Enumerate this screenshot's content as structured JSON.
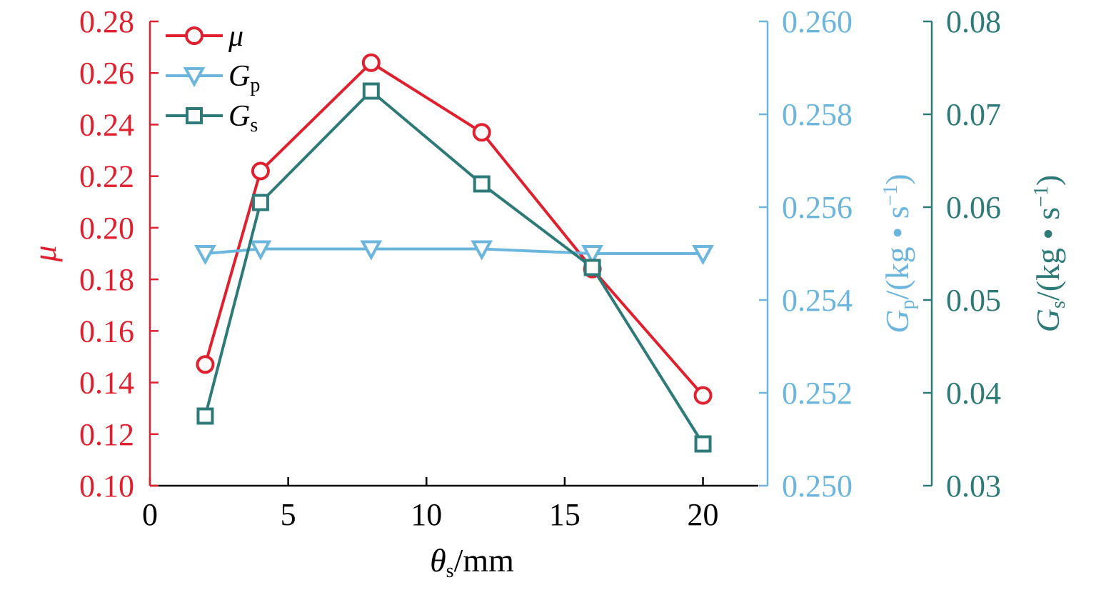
{
  "chart_data": {
    "type": "line",
    "x": [
      2,
      4,
      8,
      12,
      16,
      20
    ],
    "xlim": [
      0,
      22
    ],
    "xticks": [
      0,
      5,
      10,
      15,
      20
    ],
    "xlabel": {
      "symbol": "θ",
      "sub": "s",
      "unit": "/mm"
    },
    "axes": {
      "left": {
        "ylim": [
          0.1,
          0.28
        ],
        "ticks": [
          "0.10",
          "0.12",
          "0.14",
          "0.16",
          "0.18",
          "0.20",
          "0.22",
          "0.24",
          "0.26",
          "0.28"
        ],
        "label": {
          "symbol": "μ"
        },
        "color": "#E0202E"
      },
      "right1": {
        "ylim": [
          0.25,
          0.26
        ],
        "ticks": [
          "0.250",
          "0.252",
          "0.254",
          "0.256",
          "0.258",
          "0.260"
        ],
        "label": {
          "symbol": "G",
          "sub": "p",
          "unit": "/(kg • s",
          "sup": "−1",
          "close": ")"
        },
        "color": "#6CB6DD"
      },
      "right2": {
        "ylim": [
          0.03,
          0.08
        ],
        "ticks": [
          "0.03",
          "0.04",
          "0.05",
          "0.06",
          "0.07",
          "0.08"
        ],
        "label": {
          "symbol": "G",
          "sub": "s",
          "unit": "/(kg • s",
          "sup": "−1",
          "close": ")"
        },
        "color": "#2E7A78"
      }
    },
    "series": [
      {
        "name": "μ",
        "legend_symbol": "μ",
        "legend_sub": "",
        "axis": "left",
        "marker": "circle",
        "color": "#E0202E",
        "values": [
          0.147,
          0.222,
          0.264,
          0.237,
          0.184,
          0.135
        ]
      },
      {
        "name": "Gp",
        "legend_symbol": "G",
        "legend_sub": "p",
        "axis": "right1",
        "marker": "triangle",
        "color": "#6CB6DD",
        "values": [
          0.255,
          0.2551,
          0.2551,
          0.2551,
          0.255,
          0.255
        ]
      },
      {
        "name": "Gs",
        "legend_symbol": "G",
        "legend_sub": "s",
        "axis": "right2",
        "marker": "square",
        "color": "#2E7A78",
        "values": [
          0.0375,
          0.0605,
          0.0725,
          0.0625,
          0.0535,
          0.0345
        ]
      }
    ],
    "legend_position": "top-left"
  }
}
